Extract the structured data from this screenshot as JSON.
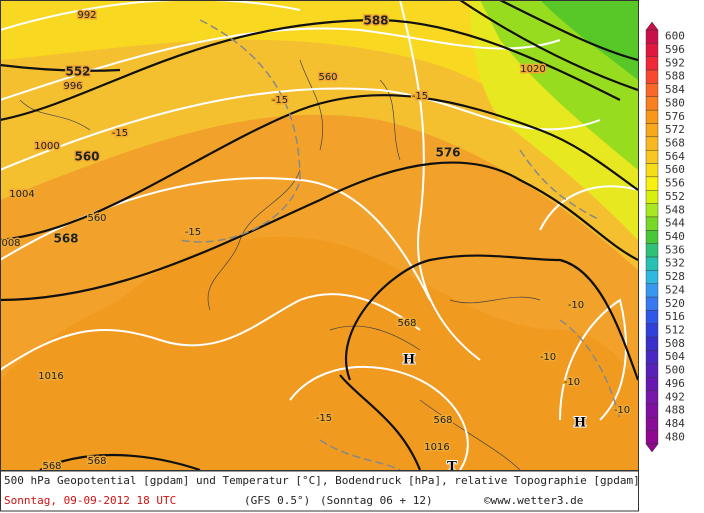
{
  "map_labels": [
    "992",
    "552",
    "996",
    "1000",
    "560",
    "1004",
    "568",
    "008",
    "588",
    "1020",
    "560",
    "-15",
    "-15",
    "-15",
    "576",
    "560",
    "-15",
    "1016",
    "568",
    "H",
    "-10",
    "-10",
    "-10",
    "-10",
    "H",
    "-15",
    "568",
    "1016",
    "568",
    "568",
    "T"
  ],
  "scale": [
    {
      "value": "600",
      "color": "#c8104a"
    },
    {
      "value": "596",
      "color": "#e01840"
    },
    {
      "value": "592",
      "color": "#f02838"
    },
    {
      "value": "588",
      "color": "#f84830"
    },
    {
      "value": "584",
      "color": "#f86828"
    },
    {
      "value": "580",
      "color": "#f88020"
    },
    {
      "value": "576",
      "color": "#f89818"
    },
    {
      "value": "572",
      "color": "#f8a818"
    },
    {
      "value": "568",
      "color": "#f8b820"
    },
    {
      "value": "564",
      "color": "#f8c820"
    },
    {
      "value": "560",
      "color": "#f8dc18"
    },
    {
      "value": "556",
      "color": "#f8f010"
    },
    {
      "value": "552",
      "color": "#d8f010"
    },
    {
      "value": "548",
      "color": "#a8e820"
    },
    {
      "value": "544",
      "color": "#78d828"
    },
    {
      "value": "540",
      "color": "#48c838"
    },
    {
      "value": "536",
      "color": "#30c078"
    },
    {
      "value": "532",
      "color": "#28c0b0"
    },
    {
      "value": "528",
      "color": "#30b8e0"
    },
    {
      "value": "524",
      "color": "#3898f0"
    },
    {
      "value": "520",
      "color": "#3878f0"
    },
    {
      "value": "516",
      "color": "#3058e8"
    },
    {
      "value": "512",
      "color": "#3040d8"
    },
    {
      "value": "508",
      "color": "#3830c8"
    },
    {
      "value": "504",
      "color": "#4828c0"
    },
    {
      "value": "500",
      "color": "#5820b8"
    },
    {
      "value": "496",
      "color": "#6818b0"
    },
    {
      "value": "492",
      "color": "#7818a8"
    },
    {
      "value": "488",
      "color": "#8010a0"
    },
    {
      "value": "484",
      "color": "#880c98"
    },
    {
      "value": "480",
      "color": "#900890"
    }
  ],
  "caption": {
    "line1": "500 hPa Geopotential [gpdam] und Temperatur [°C], Bodendruck [hPa], relative Topographie [gpdam]",
    "date": "Sonntag, 09-09-2012  18 UTC",
    "model": "(GFS 0.5°)",
    "run": "(Sonntag 06 + 12)",
    "source": "©www.wetter3.de"
  }
}
